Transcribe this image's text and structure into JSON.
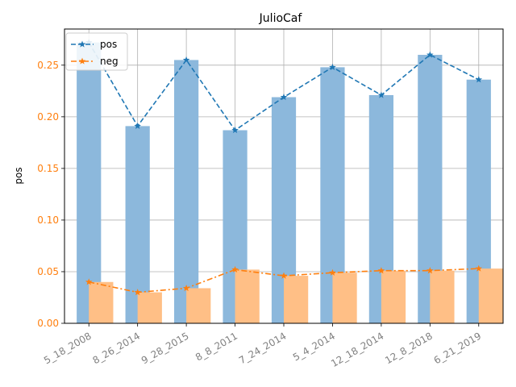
{
  "chart_data": {
    "type": "bar",
    "title": "JulioCaf",
    "xlabel": "",
    "ylabel": "pos",
    "categories": [
      "5_18_2008",
      "8_26_2014",
      "9_28_2015",
      "8_8_2011",
      "7_24_2014",
      "5_4_2014",
      "12_18_2014",
      "12_8_2018",
      "6_21_2019"
    ],
    "ylim": [
      0,
      0.285
    ],
    "yticks": [
      "0.00",
      "0.05",
      "0.10",
      "0.15",
      "0.20",
      "0.25"
    ],
    "grid": true,
    "legend_position": "top-left",
    "series": [
      {
        "name": "pos",
        "values": [
          0.272,
          0.191,
          0.255,
          0.187,
          0.219,
          0.248,
          0.221,
          0.26,
          0.236
        ],
        "bar_color": "#8cb8dc",
        "line_color": "#1f77b4",
        "line_style": "dashed"
      },
      {
        "name": "neg",
        "values": [
          0.04,
          0.03,
          0.034,
          0.052,
          0.046,
          0.049,
          0.051,
          0.051,
          0.053
        ],
        "bar_color": "#ffbf86",
        "line_color": "#ff7f0e",
        "line_style": "dash-dot"
      }
    ],
    "tick_label_color": "#808080",
    "ytick_label_color": "#ff7f0e"
  }
}
